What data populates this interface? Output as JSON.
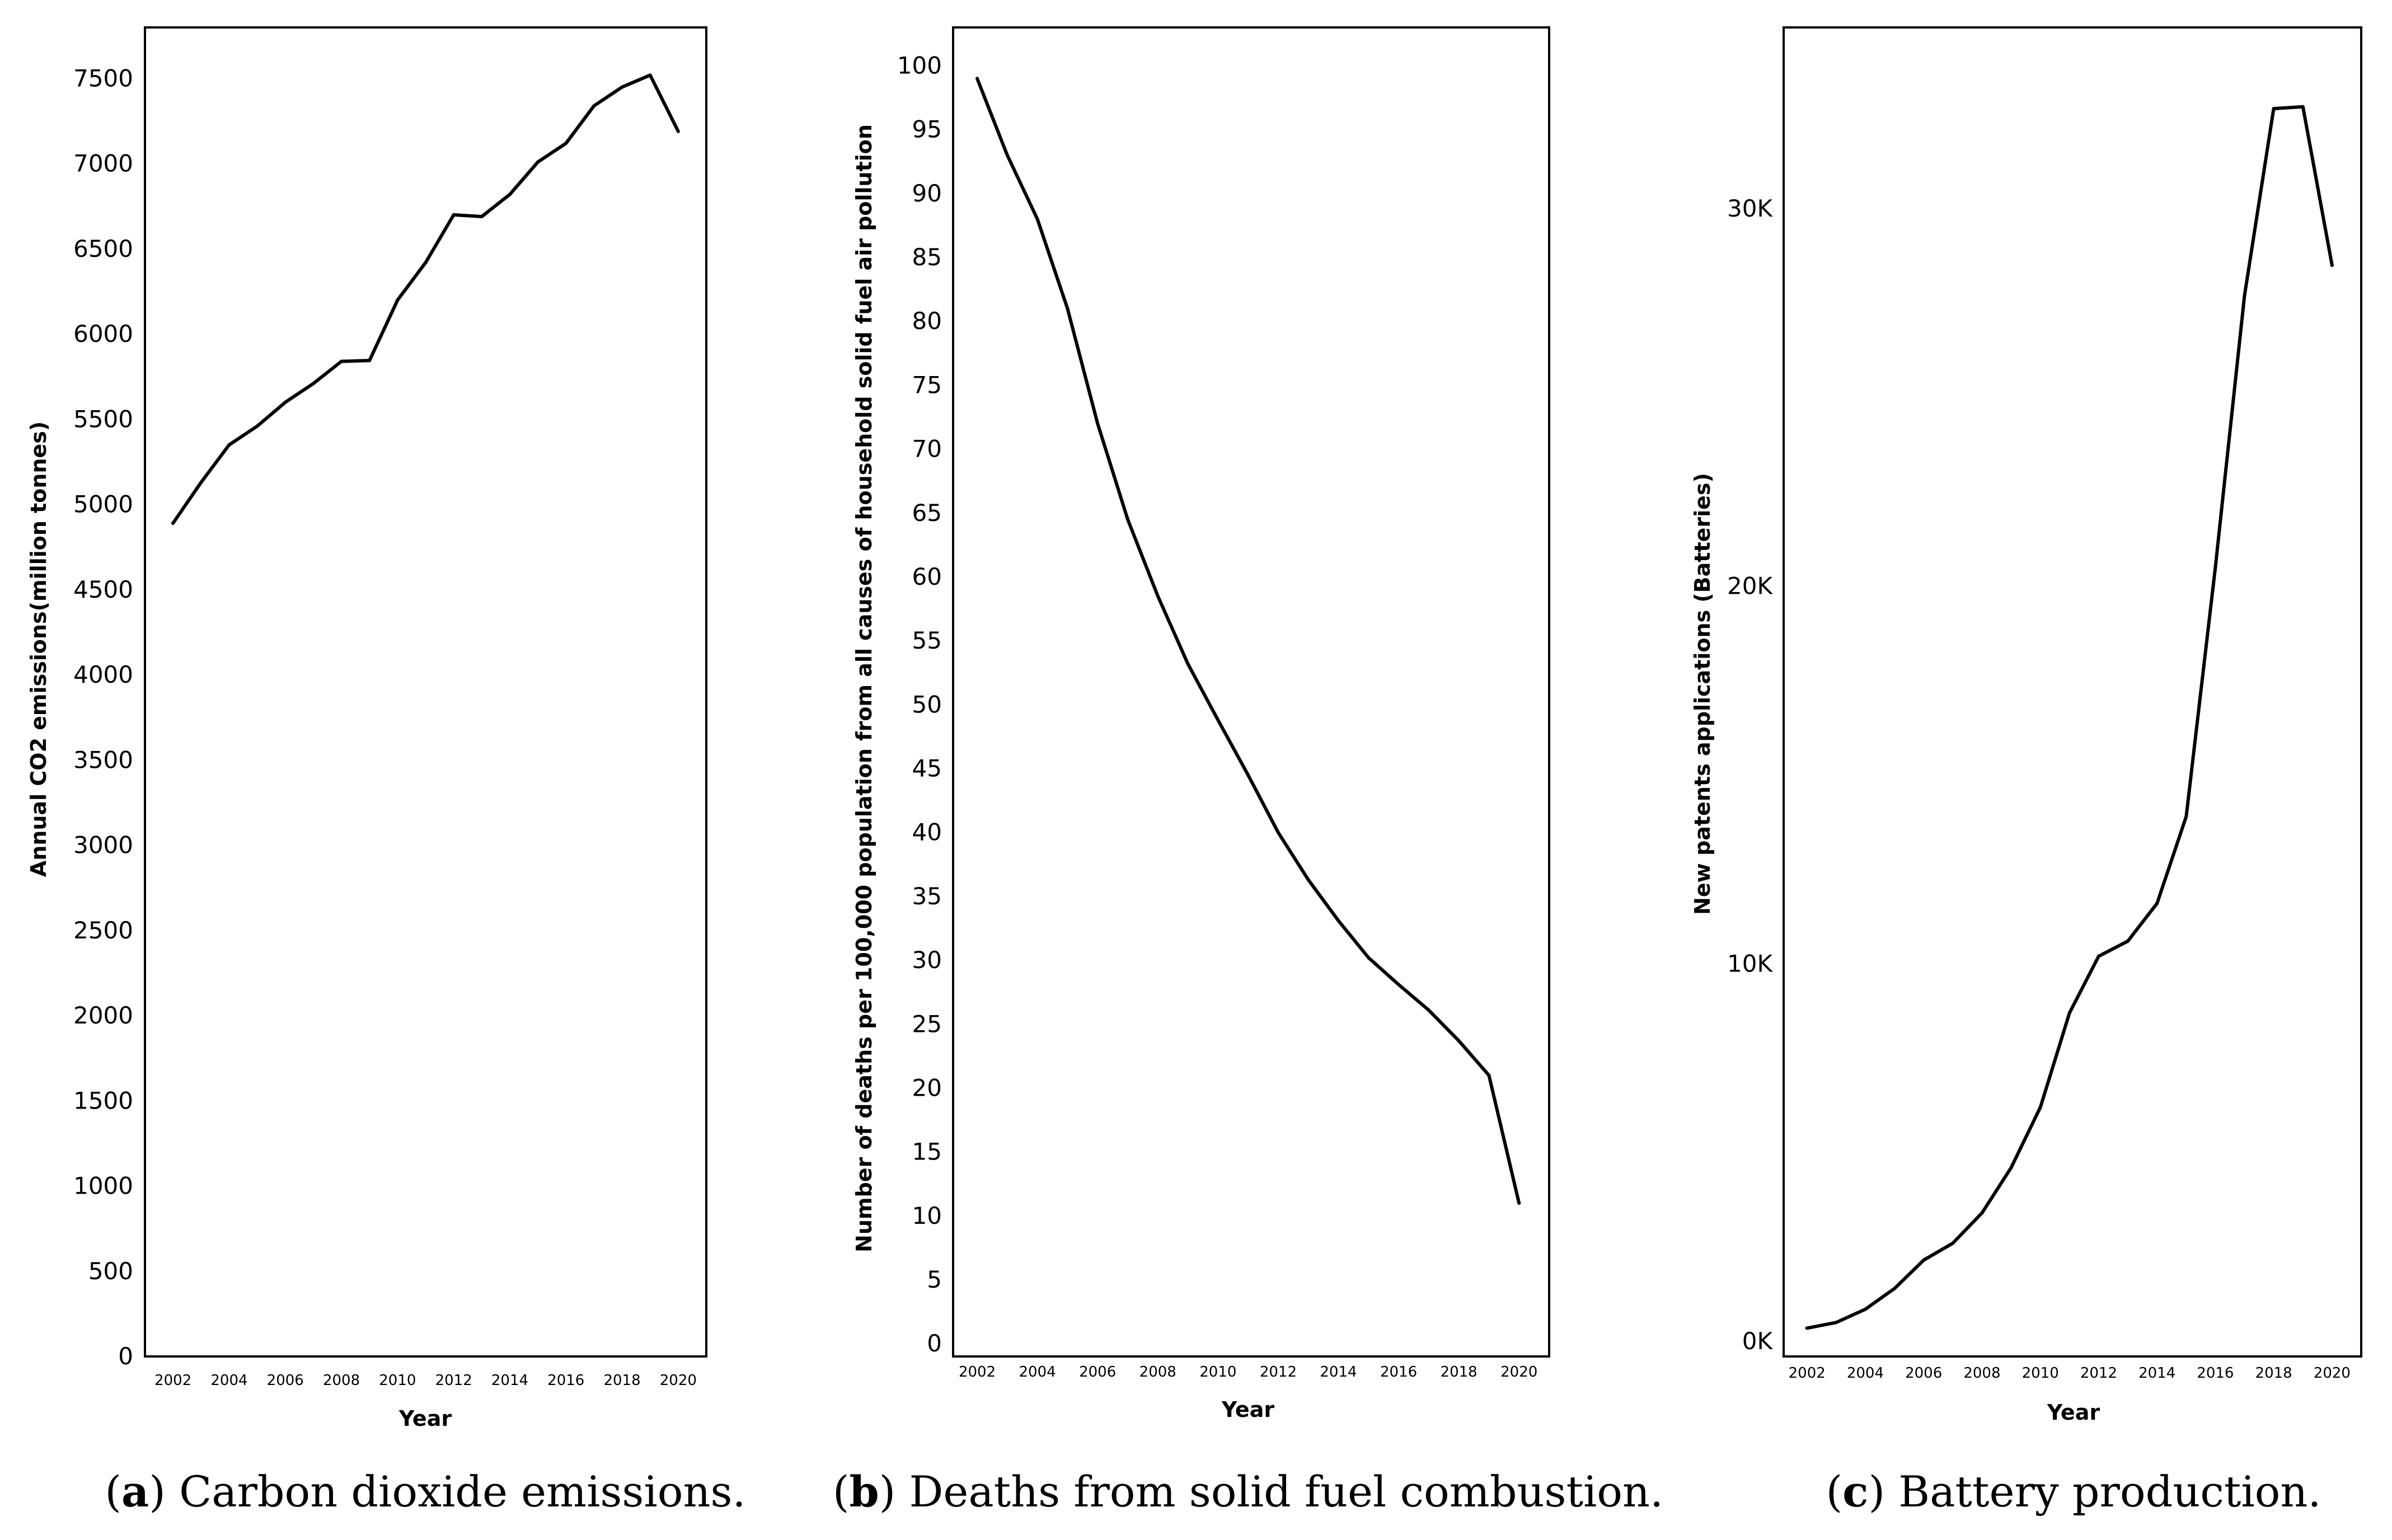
{
  "figure": {
    "line_color": "#000000",
    "background": "#ffffff"
  },
  "chart_data": [
    {
      "type": "line",
      "id": "a",
      "caption_letter": "a",
      "caption_text": ") Carbon dioxide emissions.",
      "xlabel": "Year",
      "ylabel": "Annual CO2 emissions(million tonnes)",
      "x": [
        2002,
        2003,
        2004,
        2005,
        2006,
        2007,
        2008,
        2009,
        2010,
        2011,
        2012,
        2013,
        2014,
        2015,
        2016,
        2017,
        2018,
        2019,
        2020
      ],
      "y": [
        4890,
        5130,
        5350,
        5460,
        5600,
        5710,
        5840,
        5845,
        6200,
        6420,
        6700,
        6690,
        6820,
        7010,
        7120,
        7340,
        7450,
        7520,
        7190
      ],
      "ylim": [
        0,
        7800
      ],
      "xlim": [
        2001,
        2021
      ],
      "yticks": [
        0,
        500,
        1000,
        1500,
        2000,
        2500,
        3000,
        3500,
        4000,
        4500,
        5000,
        5500,
        6000,
        6500,
        7000,
        7500
      ],
      "ytick_labels": [
        "0",
        "500",
        "1000",
        "1500",
        "2000",
        "2500",
        "3000",
        "3500",
        "4000",
        "4500",
        "5000",
        "5500",
        "6000",
        "6500",
        "7000",
        "7500"
      ],
      "xticks": [
        2002,
        2004,
        2006,
        2008,
        2010,
        2012,
        2014,
        2016,
        2018,
        2020
      ],
      "xtick_labels": [
        "2002",
        "2004",
        "2006",
        "2008",
        "2010",
        "2012",
        "2014",
        "2016",
        "2018",
        "2020"
      ]
    },
    {
      "type": "line",
      "id": "b",
      "caption_letter": "b",
      "caption_text": ") Deaths from solid fuel combustion.",
      "xlabel": "Year",
      "ylabel": "Number of deaths per 100,000 population from all causes of household solid fuel air pollution",
      "x": [
        2002,
        2003,
        2004,
        2005,
        2006,
        2007,
        2008,
        2009,
        2010,
        2011,
        2012,
        2013,
        2014,
        2015,
        2016,
        2017,
        2018,
        2019,
        2020
      ],
      "y": [
        99,
        93,
        88,
        81,
        72,
        64.5,
        58.5,
        53.2,
        48.8,
        44.5,
        40,
        36.3,
        33.1,
        30.2,
        28.1,
        26.1,
        23.7,
        21,
        11
      ],
      "ylim": [
        -1,
        103
      ],
      "xlim": [
        2001.2,
        2021
      ],
      "yticks": [
        0,
        5,
        10,
        15,
        20,
        25,
        30,
        35,
        40,
        45,
        50,
        55,
        60,
        65,
        70,
        75,
        80,
        85,
        90,
        95,
        100
      ],
      "ytick_labels": [
        "0",
        "5",
        "10",
        "15",
        "20",
        "25",
        "30",
        "35",
        "40",
        "45",
        "50",
        "55",
        "60",
        "65",
        "70",
        "75",
        "80",
        "85",
        "90",
        "95",
        "100"
      ],
      "xticks": [
        2002,
        2004,
        2006,
        2008,
        2010,
        2012,
        2014,
        2016,
        2018,
        2020
      ],
      "xtick_labels": [
        "2002",
        "2004",
        "2006",
        "2008",
        "2010",
        "2012",
        "2014",
        "2016",
        "2018",
        "2020"
      ]
    },
    {
      "type": "line",
      "id": "c",
      "caption_letter": "c",
      "caption_text": ") Battery production.",
      "xlabel": "Year",
      "ylabel": "New patents applications (Batteries)",
      "x": [
        2002,
        2003,
        2004,
        2005,
        2006,
        2007,
        2008,
        2009,
        2010,
        2011,
        2012,
        2013,
        2014,
        2015,
        2016,
        2017,
        2018,
        2019,
        2020
      ],
      "y": [
        350,
        500,
        850,
        1400,
        2150,
        2600,
        3400,
        4600,
        6200,
        8700,
        10200,
        10600,
        11600,
        13900,
        20500,
        27700,
        32650,
        32700,
        28500
      ],
      "ylim": [
        -400,
        34800
      ],
      "xlim": [
        2001.2,
        2021
      ],
      "yticks": [
        0,
        10000,
        20000,
        30000
      ],
      "ytick_labels": [
        "0K",
        "10K",
        "20K",
        "30K"
      ],
      "xticks": [
        2002,
        2004,
        2006,
        2008,
        2010,
        2012,
        2014,
        2016,
        2018,
        2020
      ],
      "xtick_labels": [
        "2002",
        "2004",
        "2006",
        "2008",
        "2010",
        "2012",
        "2014",
        "2016",
        "2018",
        "2020"
      ]
    }
  ]
}
